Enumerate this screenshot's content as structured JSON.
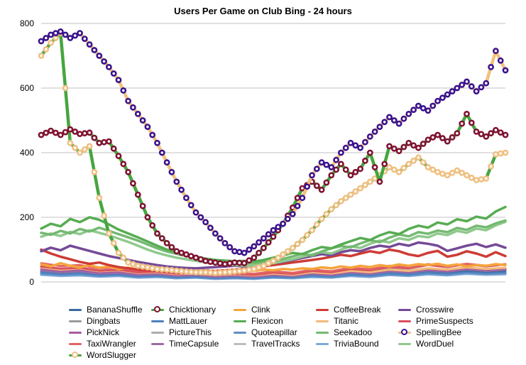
{
  "chart_data": {
    "type": "line",
    "title": "Users Per Game on Club Bing - 24 hours",
    "xlabel": "",
    "ylabel": "",
    "x_range_hours": [
      0,
      24
    ],
    "ylim": [
      0,
      800
    ],
    "yticks": [
      0,
      200,
      400,
      600,
      800
    ],
    "grid": true,
    "grid_color": "#c0c0c0",
    "legend_position": "bottom",
    "series": [
      {
        "name": "TravelTracks",
        "line_color": "#bebebe",
        "width": 3,
        "step": 1,
        "values": [
          23,
          19,
          21,
          17,
          19,
          14,
          16,
          12,
          14,
          10,
          12,
          10,
          14,
          12,
          16,
          14,
          19,
          16,
          22,
          19,
          24,
          21,
          25,
          22,
          23
        ]
      },
      {
        "name": "PictureThis",
        "line_color": "#acacac",
        "width": 3,
        "step": 1,
        "values": [
          31,
          26,
          29,
          23,
          25,
          19,
          21,
          16,
          18,
          14,
          16,
          14,
          18,
          16,
          22,
          19,
          25,
          22,
          28,
          25,
          31,
          27,
          32,
          28,
          30
        ]
      },
      {
        "name": "Dingbats",
        "line_color": "#9a9a9a",
        "width": 3,
        "step": 1,
        "values": [
          46,
          39,
          42,
          34,
          37,
          29,
          31,
          25,
          27,
          22,
          25,
          21,
          27,
          23,
          31,
          27,
          35,
          31,
          39,
          35,
          42,
          38,
          44,
          39,
          42
        ]
      },
      {
        "name": "TriviaBound",
        "line_color": "#7fa9d9",
        "width": 3,
        "step": 1,
        "values": [
          22,
          18,
          20,
          16,
          18,
          13,
          15,
          11,
          13,
          9,
          11,
          9,
          13,
          11,
          15,
          13,
          18,
          15,
          21,
          18,
          23,
          20,
          25,
          22,
          24
        ]
      },
      {
        "name": "Quoteapillar",
        "line_color": "#5d8fc7",
        "width": 3,
        "step": 1,
        "values": [
          26,
          22,
          24,
          19,
          21,
          16,
          18,
          13,
          15,
          11,
          13,
          11,
          15,
          13,
          18,
          15,
          21,
          18,
          24,
          21,
          27,
          23,
          29,
          25,
          28
        ]
      },
      {
        "name": "MattLauer",
        "line_color": "#4e81be",
        "width": 3,
        "step": 1,
        "values": [
          30,
          25,
          28,
          22,
          24,
          18,
          20,
          15,
          17,
          13,
          15,
          13,
          17,
          15,
          21,
          18,
          24,
          21,
          27,
          24,
          30,
          26,
          32,
          28,
          30
        ]
      },
      {
        "name": "BananaShuffle",
        "line_color": "#38699e",
        "width": 3,
        "step": 1,
        "values": [
          36,
          30,
          33,
          26,
          28,
          22,
          24,
          19,
          21,
          17,
          20,
          17,
          22,
          19,
          26,
          22,
          29,
          26,
          33,
          29,
          35,
          31,
          36,
          32,
          35
        ]
      },
      {
        "name": "TimeCapsule",
        "line_color": "#9b6aa6",
        "width": 3,
        "step": 1,
        "values": [
          36,
          30,
          33,
          26,
          28,
          22,
          24,
          19,
          21,
          16,
          19,
          16,
          21,
          18,
          25,
          21,
          29,
          25,
          33,
          29,
          36,
          32,
          39,
          34,
          38
        ]
      },
      {
        "name": "PickNick",
        "line_color": "#a85aa0",
        "width": 3,
        "step": 1,
        "values": [
          42,
          35,
          38,
          30,
          33,
          26,
          28,
          22,
          24,
          19,
          22,
          18,
          24,
          20,
          28,
          24,
          32,
          28,
          36,
          32,
          40,
          35,
          43,
          38,
          42
        ]
      },
      {
        "name": "Titanic",
        "line_color": "#f2ba79",
        "width": 3,
        "step": 1,
        "values": [
          45,
          38,
          42,
          33,
          36,
          28,
          30,
          24,
          26,
          21,
          24,
          20,
          26,
          22,
          30,
          26,
          34,
          30,
          38,
          34,
          42,
          38,
          45,
          40,
          44
        ]
      },
      {
        "name": "PrimeSuspects",
        "line_color": "#d9505f",
        "width": 3,
        "step": 1,
        "values": [
          48,
          41,
          44,
          35,
          38,
          30,
          32,
          26,
          28,
          23,
          26,
          22,
          29,
          25,
          34,
          30,
          40,
          36,
          46,
          42,
          52,
          46,
          55,
          48,
          54
        ]
      },
      {
        "name": "TaxiWrangler",
        "line_color": "#e16263",
        "width": 3,
        "step": 1,
        "values": [
          58,
          49,
          52,
          42,
          45,
          36,
          38,
          30,
          32,
          26,
          29,
          25,
          33,
          28,
          38,
          33,
          44,
          39,
          50,
          45,
          55,
          48,
          56,
          50,
          55
        ]
      },
      {
        "name": "Clink",
        "line_color": "#f5a43c",
        "width": 3.5,
        "step": 0.5,
        "values": [
          55,
          48,
          58,
          50,
          45,
          52,
          44,
          48,
          40,
          44,
          38,
          42,
          36,
          40,
          34,
          38,
          33,
          36,
          32,
          35,
          33,
          36,
          34,
          38,
          36,
          40,
          38,
          42,
          40,
          45,
          42,
          48,
          44,
          50,
          46,
          52,
          48,
          54,
          50,
          55,
          52,
          56,
          50,
          54,
          48,
          52,
          50,
          55,
          52
        ]
      },
      {
        "name": "CoffeeBreak",
        "line_color": "#ce3b35",
        "width": 3.5,
        "step": 0.5,
        "values": [
          100,
          88,
          78,
          70,
          62,
          56,
          60,
          52,
          46,
          42,
          38,
          36,
          34,
          33,
          32,
          34,
          33,
          35,
          34,
          36,
          38,
          40,
          44,
          48,
          52,
          56,
          60,
          64,
          68,
          72,
          78,
          84,
          80,
          88,
          95,
          90,
          100,
          95,
          85,
          80,
          90,
          96,
          78,
          84,
          95,
          88,
          78,
          92,
          80
        ]
      },
      {
        "name": "Crosswire",
        "line_color": "#744a97",
        "width": 3.5,
        "step": 0.5,
        "values": [
          95,
          106,
          98,
          112,
          104,
          96,
          88,
          80,
          74,
          68,
          62,
          57,
          52,
          48,
          45,
          43,
          42,
          44,
          46,
          48,
          50,
          48,
          52,
          55,
          58,
          62,
          68,
          74,
          80,
          86,
          82,
          92,
          98,
          95,
          105,
          112,
          108,
          118,
          112,
          122,
          118,
          112,
          96,
          104,
          112,
          118,
          108,
          116,
          106
        ]
      },
      {
        "name": "WordDuel",
        "line_color": "#8fc98c",
        "width": 3.5,
        "step": 0.5,
        "values": [
          140,
          150,
          142,
          155,
          148,
          160,
          152,
          144,
          134,
          124,
          112,
          100,
          90,
          82,
          75,
          70,
          65,
          60,
          57,
          54,
          52,
          50,
          52,
          55,
          58,
          64,
          70,
          78,
          85,
          92,
          88,
          100,
          110,
          105,
          118,
          128,
          122,
          135,
          130,
          142,
          138,
          150,
          145,
          158,
          152,
          165,
          160,
          175,
          186
        ]
      },
      {
        "name": "Seekadoo",
        "line_color": "#74b971",
        "width": 3.5,
        "step": 0.5,
        "values": [
          152,
          146,
          158,
          150,
          164,
          156,
          168,
          158,
          148,
          138,
          128,
          116,
          104,
          94,
          87,
          80,
          74,
          69,
          65,
          61,
          59,
          57,
          59,
          61,
          65,
          71,
          79,
          87,
          81,
          94,
          104,
          111,
          107,
          119,
          129,
          123,
          137,
          147,
          141,
          154,
          149,
          159,
          154,
          167,
          161,
          174,
          169,
          181,
          190
        ]
      },
      {
        "name": "Flexicon",
        "line_color": "#57ac52",
        "width": 3.5,
        "step": 0.5,
        "values": [
          165,
          180,
          172,
          195,
          185,
          200,
          192,
          178,
          162,
          150,
          138,
          125,
          112,
          100,
          92,
          85,
          78,
          72,
          68,
          66,
          64,
          65,
          63,
          68,
          75,
          82,
          90,
          86,
          98,
          108,
          104,
          116,
          126,
          136,
          130,
          144,
          154,
          148,
          164,
          174,
          168,
          184,
          178,
          194,
          188,
          202,
          196,
          218,
          232
        ]
      },
      {
        "name": "WordSlugger",
        "line_color": "#46a53f",
        "marker_color": "#efc083",
        "width": 4.5,
        "step": 0.5,
        "values": [
          700,
          740,
          770,
          430,
          400,
          420,
          260,
          150,
          90,
          60,
          50,
          45,
          40,
          38,
          35,
          32,
          30,
          30,
          28,
          30,
          32,
          35,
          40,
          50,
          65,
          85,
          105,
          130,
          160,
          195,
          225,
          250,
          270,
          290,
          310,
          330,
          355,
          340,
          365,
          385,
          355,
          340,
          330,
          345,
          330,
          315,
          320,
          395,
          400
        ]
      },
      {
        "name": "Chicktionary",
        "line_color": "#46a53f",
        "marker_color": "#7e1230",
        "width": 4.5,
        "step": 0.5,
        "values": [
          455,
          468,
          455,
          472,
          458,
          462,
          430,
          435,
          390,
          340,
          270,
          200,
          150,
          120,
          95,
          85,
          75,
          65,
          60,
          55,
          60,
          58,
          75,
          105,
          140,
          180,
          230,
          290,
          310,
          285,
          330,
          365,
          330,
          350,
          400,
          310,
          420,
          405,
          430,
          415,
          440,
          455,
          435,
          460,
          520,
          465,
          450,
          470,
          455
        ]
      },
      {
        "name": "SpellingBee",
        "line_color": "#f1c17e",
        "marker_color": "#3a128c",
        "width": 4.5,
        "step": 0.5,
        "values": [
          745,
          765,
          775,
          755,
          770,
          735,
          700,
          665,
          625,
          560,
          520,
          480,
          430,
          370,
          310,
          260,
          215,
          185,
          150,
          120,
          95,
          90,
          110,
          135,
          160,
          180,
          210,
          260,
          330,
          370,
          355,
          400,
          430,
          415,
          450,
          480,
          510,
          490,
          520,
          545,
          530,
          560,
          580,
          600,
          620,
          590,
          615,
          715,
          655
        ]
      }
    ]
  },
  "legend": {
    "items": [
      "BananaShuffle",
      "Chicktionary",
      "Clink",
      "CoffeeBreak",
      "Crosswire",
      "Dingbats",
      "MattLauer",
      "Flexicon",
      "Titanic",
      "PrimeSuspects",
      "PickNick",
      "PictureThis",
      "Quoteapillar",
      "Seekadoo",
      "SpellingBee",
      "TaxiWrangler",
      "TimeCapsule",
      "TravelTracks",
      "TriviaBound",
      "WordDuel",
      "WordSlugger"
    ]
  }
}
